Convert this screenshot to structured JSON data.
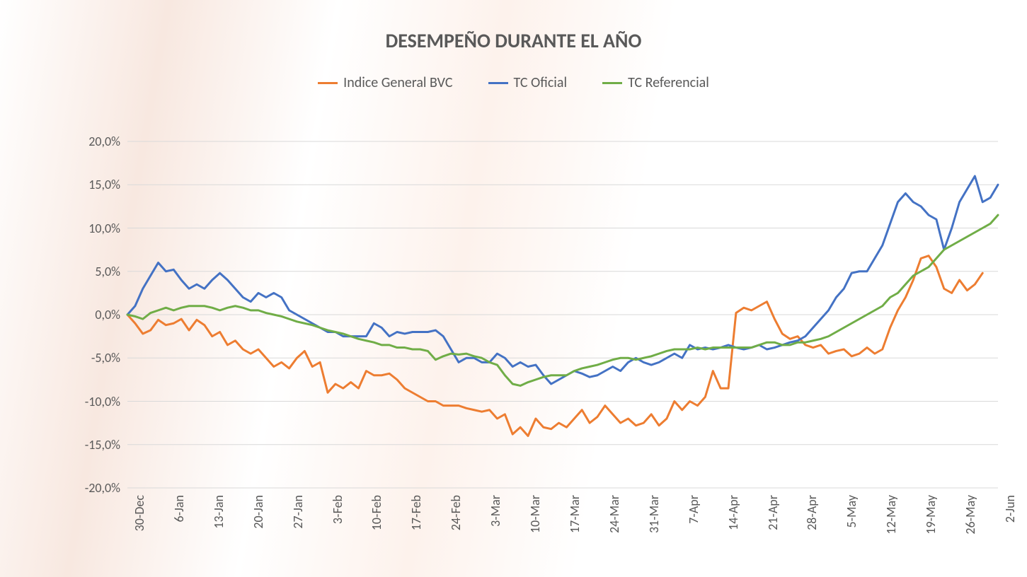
{
  "chart": {
    "type": "line",
    "title": "DESEMPEÑO DURANTE EL AÑO",
    "title_fontsize": 28,
    "title_color": "#595959",
    "legend_fontsize": 20,
    "axis_label_fontsize": 18,
    "background_color": "#ffffff",
    "grid_color": "#d9d9d9",
    "line_width": 3,
    "ylim": [
      -20,
      20
    ],
    "ytick_step": 5,
    "y_tick_labels": [
      "-20,0%",
      "-15,0%",
      "-10,0%",
      "-5,0%",
      "0,0%",
      "5,0%",
      "10,0%",
      "15,0%",
      "20,0%"
    ],
    "y_tick_values": [
      -20,
      -15,
      -10,
      -5,
      0,
      5,
      10,
      15,
      20
    ],
    "x_labels": [
      "30-Dec",
      "6-Jan",
      "13-Jan",
      "20-Jan",
      "27-Jan",
      "3-Feb",
      "10-Feb",
      "17-Feb",
      "24-Feb",
      "3-Mar",
      "10-Mar",
      "17-Mar",
      "24-Mar",
      "31-Mar",
      "7-Apr",
      "14-Apr",
      "21-Apr",
      "28-Apr",
      "5-May",
      "12-May",
      "19-May",
      "26-May",
      "2-Jun"
    ],
    "series": [
      {
        "name": "Indice General BVC",
        "color": "#ed7d31",
        "values": [
          0,
          -1.0,
          -2.2,
          -1.8,
          -0.6,
          -1.2,
          -1.0,
          -0.5,
          -1.8,
          -0.6,
          -1.2,
          -2.5,
          -2.0,
          -3.5,
          -3.0,
          -4.0,
          -4.5,
          -4.0,
          -5.0,
          -6.0,
          -5.5,
          -6.2,
          -5.0,
          -4.2,
          -6.0,
          -5.5,
          -9.0,
          -8.0,
          -8.5,
          -7.8,
          -8.5,
          -6.5,
          -7.0,
          -7.0,
          -6.8,
          -7.5,
          -8.5,
          -9.0,
          -9.5,
          -10.0,
          -10.0,
          -10.5,
          -10.5,
          -10.5,
          -10.8,
          -11.0,
          -11.2,
          -11.0,
          -12.0,
          -11.5,
          -13.8,
          -13.0,
          -14.0,
          -12.0,
          -13.0,
          -13.2,
          -12.5,
          -13.0,
          -12.0,
          -11.0,
          -12.5,
          -11.8,
          -10.5,
          -11.5,
          -12.5,
          -12.0,
          -12.8,
          -12.5,
          -11.5,
          -12.8,
          -12.0,
          -10.0,
          -11.0,
          -10.0,
          -10.5,
          -9.5,
          -6.5,
          -8.5,
          -8.5,
          0.2,
          0.8,
          0.5,
          1.0,
          1.5,
          -0.5,
          -2.2,
          -2.8,
          -2.5,
          -3.5,
          -3.8,
          -3.5,
          -4.5,
          -4.2,
          -4.0,
          -4.8,
          -4.5,
          -3.8,
          -4.5,
          -4.0,
          -1.5,
          0.5,
          2.0,
          4.0,
          6.5,
          6.8,
          5.5,
          3.0,
          2.5,
          4.0,
          2.8,
          3.5,
          4.8
        ]
      },
      {
        "name": "TC Oficial",
        "color": "#4472c4",
        "values": [
          0,
          1.0,
          3.0,
          4.5,
          6.0,
          5.0,
          5.2,
          4.0,
          3.0,
          3.5,
          3.0,
          4.0,
          4.8,
          4.0,
          3.0,
          2.0,
          1.5,
          2.5,
          2.0,
          2.5,
          2.0,
          0.5,
          0.0,
          -0.5,
          -1.0,
          -1.5,
          -2.0,
          -2.0,
          -2.5,
          -2.5,
          -2.5,
          -2.5,
          -1.0,
          -1.5,
          -2.5,
          -2.0,
          -2.2,
          -2.0,
          -2.0,
          -2.0,
          -1.8,
          -2.5,
          -4.0,
          -5.5,
          -5.0,
          -5.0,
          -5.5,
          -5.5,
          -4.5,
          -5.0,
          -6.0,
          -5.5,
          -6.0,
          -5.8,
          -7.0,
          -8.0,
          -7.5,
          -7.0,
          -6.5,
          -6.8,
          -7.2,
          -7.0,
          -6.5,
          -6.0,
          -6.5,
          -5.5,
          -5.0,
          -5.5,
          -5.8,
          -5.5,
          -5.0,
          -4.5,
          -5.0,
          -3.5,
          -4.0,
          -3.8,
          -4.0,
          -3.8,
          -3.5,
          -3.8,
          -4.0,
          -3.8,
          -3.5,
          -4.0,
          -3.8,
          -3.5,
          -3.2,
          -3.0,
          -2.5,
          -1.5,
          -0.5,
          0.5,
          2.0,
          3.0,
          4.8,
          5.0,
          5.0,
          6.5,
          8.0,
          10.5,
          13.0,
          14.0,
          13.0,
          12.5,
          11.5,
          11.0,
          7.5,
          10.0,
          13.0,
          14.5,
          16.0,
          13.0,
          13.5,
          15.0
        ]
      },
      {
        "name": "TC Referencial",
        "color": "#70ad47",
        "values": [
          0,
          -0.2,
          -0.5,
          0.2,
          0.5,
          0.8,
          0.5,
          0.8,
          1.0,
          1.0,
          1.0,
          0.8,
          0.5,
          0.8,
          1.0,
          0.8,
          0.5,
          0.5,
          0.2,
          0.0,
          -0.2,
          -0.5,
          -0.8,
          -1.0,
          -1.2,
          -1.5,
          -1.8,
          -2.0,
          -2.2,
          -2.5,
          -2.8,
          -3.0,
          -3.2,
          -3.5,
          -3.5,
          -3.8,
          -3.8,
          -4.0,
          -4.0,
          -4.2,
          -5.2,
          -4.8,
          -4.5,
          -4.6,
          -4.5,
          -4.8,
          -5.0,
          -5.5,
          -5.8,
          -7.0,
          -8.0,
          -8.2,
          -7.8,
          -7.5,
          -7.2,
          -7.0,
          -7.0,
          -7.0,
          -6.5,
          -6.2,
          -6.0,
          -5.8,
          -5.5,
          -5.2,
          -5.0,
          -5.0,
          -5.2,
          -5.0,
          -4.8,
          -4.5,
          -4.2,
          -4.0,
          -4.0,
          -4.0,
          -3.8,
          -4.0,
          -3.8,
          -3.8,
          -3.8,
          -3.8,
          -3.8,
          -3.8,
          -3.5,
          -3.2,
          -3.2,
          -3.5,
          -3.5,
          -3.2,
          -3.2,
          -3.0,
          -2.8,
          -2.5,
          -2.0,
          -1.5,
          -1.0,
          -0.5,
          0.0,
          0.5,
          1.0,
          2.0,
          2.5,
          3.5,
          4.5,
          5.0,
          5.5,
          6.5,
          7.5,
          8.0,
          8.5,
          9.0,
          9.5,
          10.0,
          10.5,
          11.5
        ]
      }
    ]
  }
}
